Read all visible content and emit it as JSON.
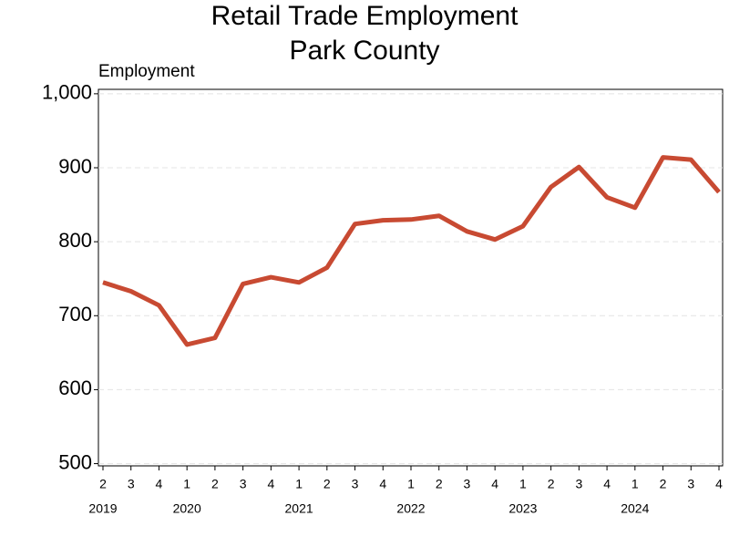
{
  "chart_data": {
    "type": "line",
    "title": "Retail Trade Employment",
    "subtitle": "Park County",
    "y_label": "Employment",
    "categories": [
      "2",
      "3",
      "4",
      "1",
      "2",
      "3",
      "4",
      "1",
      "2",
      "3",
      "4",
      "1",
      "2",
      "3",
      "4",
      "1",
      "2",
      "3",
      "4",
      "1",
      "2",
      "3",
      "4"
    ],
    "years": [
      "2019",
      null,
      null,
      "2020",
      null,
      null,
      null,
      "2021",
      null,
      null,
      null,
      "2022",
      null,
      null,
      null,
      "2023",
      null,
      null,
      null,
      "2024",
      null,
      null,
      null
    ],
    "series": [
      {
        "name": "Employment",
        "color": "#c84a32",
        "values": [
          745,
          733,
          714,
          661,
          670,
          743,
          752,
          745,
          765,
          824,
          829,
          830,
          835,
          814,
          803,
          821,
          874,
          901,
          860,
          846,
          914,
          911,
          867
        ]
      }
    ],
    "ylim": [
      497,
      1006
    ],
    "yticks": [
      500,
      600,
      700,
      800,
      900,
      {
        "value": 1000,
        "label": "1,000"
      }
    ],
    "grid": true
  }
}
